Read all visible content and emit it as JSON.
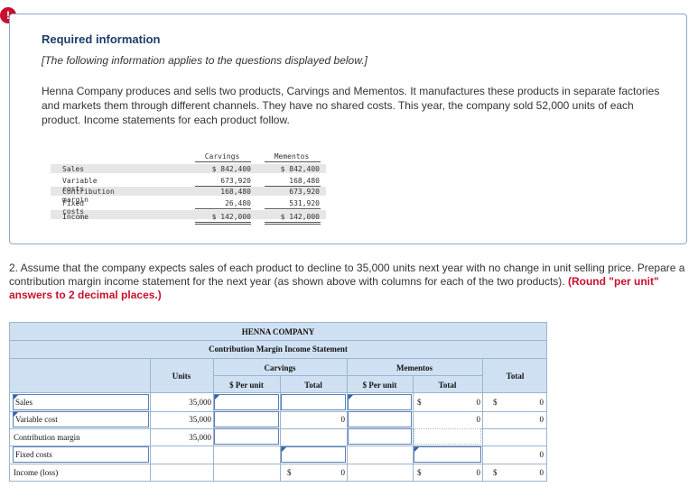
{
  "alert_icon": "!",
  "info": {
    "title": "Required information",
    "italic_note": "[The following information applies to the questions displayed below.]",
    "paragraph": "Henna Company produces and sells two products, Carvings and Mementos. It manufactures these products in separate factories and markets them through different channels. They have no shared costs. This year, the company sold 52,000 units of each product. Income statements for each product follow."
  },
  "income_statements": {
    "headers": [
      "Carvings",
      "Mementos"
    ],
    "rows": [
      {
        "label": "Sales",
        "carvings": "$ 842,400",
        "mementos": "$ 842,400"
      },
      {
        "label": "Variable costs",
        "carvings": "673,920",
        "mementos": "168,480"
      },
      {
        "label": "Contribution margin",
        "carvings": "168,480",
        "mementos": "673,920"
      },
      {
        "label": "Fixed costs",
        "carvings": "26,480",
        "mementos": "531,920"
      },
      {
        "label": "Income",
        "carvings": "$ 142,000",
        "mementos": "$ 142,000"
      }
    ]
  },
  "question": {
    "text": "2. Assume that the company expects sales of each product to decline to 35,000 units next year with no change in unit selling price. Prepare a contribution margin income statement for the next year (as shown above with columns for each of the two products).",
    "instruction": "(Round \"per unit\" answers to 2 decimal places.)"
  },
  "worksheet": {
    "company": "HENNA COMPANY",
    "statement_title": "Contribution Margin Income Statement",
    "col_units": "Units",
    "col_carvings": "Carvings",
    "col_mementos": "Mementos",
    "col_total": "Total",
    "sub_per_unit": "$ Per unit",
    "sub_total": "Total",
    "dollar_sign": "$",
    "rows": {
      "sales": {
        "label": "Sales",
        "units": "35,000",
        "mementos_total": "0",
        "total": "0"
      },
      "variable_cost": {
        "label": "Variable cost",
        "units": "35,000",
        "carvings_total": "0",
        "mementos_total": "0",
        "total": "0"
      },
      "contribution_margin": {
        "label": "Contribution margin",
        "units": "35,000"
      },
      "fixed_costs": {
        "label": "Fixed costs",
        "total": "0"
      },
      "income": {
        "label": "Income (loss)",
        "carvings_total": "0",
        "mementos_total": "0",
        "total": "0"
      }
    }
  }
}
